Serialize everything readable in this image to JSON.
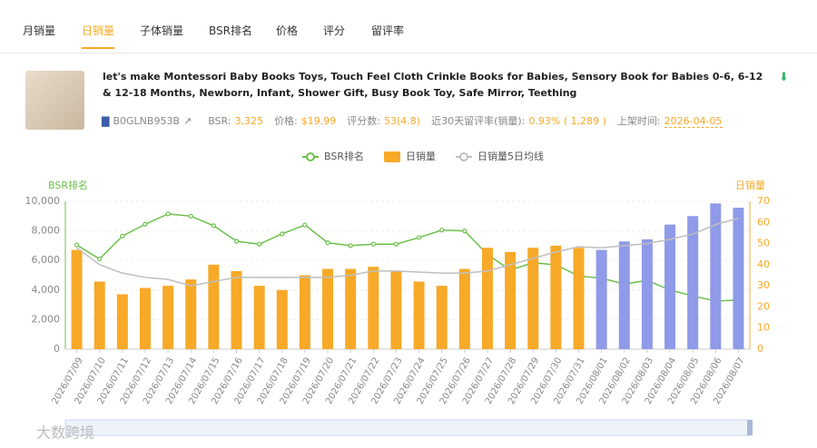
{
  "tabs": [
    "月销量",
    "日销量",
    "子体销量",
    "BSR排名",
    "价格",
    "评分",
    "留评率"
  ],
  "active_tab": 1,
  "product": {
    "title": "let's make Montessori Baby Books Toys, Touch Feel Cloth Crinkle Books for Babies, Sensory Book for Babies 0-6, 6-12 & 12-18 Months, Newborn, Infant, Shower Gift, Busy Book Toy, Safe Mirror, Teething",
    "asin": "B0GLNB953B",
    "stats": [
      {
        "label": "BSR:",
        "value": "3,325"
      },
      {
        "label": "价格:",
        "value": "$19.99"
      },
      {
        "label": "评分数:",
        "value": "53(4.8)"
      },
      {
        "label": "近30天留评率(销量):",
        "value": "0.93% ( 1,289 )"
      },
      {
        "label": "上架时间:",
        "value": "2026-04-05"
      }
    ]
  },
  "watermark": "大数跨境",
  "chart_data": {
    "type": "combo",
    "y_label": "BSR排名",
    "y2_label": "日销量",
    "categories": [
      "2026/07/09",
      "2026/07/10",
      "2026/07/11",
      "2026/07/12",
      "2026/07/13",
      "2026/07/14",
      "2026/07/15",
      "2026/07/16",
      "2026/07/17",
      "2026/07/18",
      "2026/07/19",
      "2026/07/20",
      "2026/07/21",
      "2026/07/22",
      "2026/07/23",
      "2026/07/24",
      "2026/07/25",
      "2026/07/26",
      "2026/07/27",
      "2026/07/28",
      "2026/07/29",
      "2026/07/30",
      "2026/07/31",
      "2026/08/01",
      "2026/08/02",
      "2026/08/03",
      "2026/08/04",
      "2026/08/05",
      "2026/08/06",
      "2026/08/07"
    ],
    "series": [
      {
        "name": "BSR排名",
        "type": "line",
        "color": "#6cc04a",
        "values": [
          7050,
          6100,
          7650,
          8450,
          9150,
          9000,
          8350,
          7300,
          7100,
          7800,
          8400,
          7200,
          7000,
          7100,
          7100,
          7550,
          8050,
          8000,
          6400,
          5350,
          5850,
          5700,
          4950,
          4800,
          4400,
          4650,
          4000,
          3600,
          3250,
          3325
        ]
      },
      {
        "name": "日销量",
        "type": "bar",
        "axis": "y2",
        "color": "#f7a928",
        "colors": [
          "#f7a928",
          "#f7a928",
          "#f7a928",
          "#f7a928",
          "#f7a928",
          "#f7a928",
          "#f7a928",
          "#f7a928",
          "#f7a928",
          "#f7a928",
          "#f7a928",
          "#f7a928",
          "#f7a928",
          "#f7a928",
          "#f7a928",
          "#f7a928",
          "#f7a928",
          "#f7a928",
          "#f7a928",
          "#f7a928",
          "#f7a928",
          "#f7a928",
          "#f7a928",
          "#8f9ae8",
          "#8f9ae8",
          "#8f9ae8",
          "#8f9ae8",
          "#8f9ae8",
          "#8f9ae8",
          "#8f9ae8"
        ],
        "values": [
          47,
          32,
          26,
          29,
          30,
          33,
          40,
          37,
          30,
          28,
          35,
          38,
          38,
          39,
          37,
          32,
          30,
          38,
          48,
          46,
          48,
          49,
          48,
          47,
          51,
          52,
          59,
          63,
          69,
          67
        ]
      },
      {
        "name": "日销量5日均线",
        "type": "line",
        "axis": "y2",
        "color": "#bfbfbf",
        "values": [
          48,
          40,
          36,
          34,
          33,
          30,
          32,
          34,
          34,
          34,
          34,
          34,
          35,
          37,
          37,
          36.5,
          36,
          36,
          37,
          40,
          43,
          46,
          48.5,
          48,
          49,
          50,
          52,
          54.5,
          59,
          62
        ]
      }
    ],
    "ylim": [
      0,
      10000
    ],
    "yticks": [
      0,
      {
        "value": 2000,
        "label": "2,000"
      },
      {
        "value": 4000,
        "label": "4,000"
      },
      {
        "value": 6000,
        "label": "6,000"
      },
      {
        "value": 8000,
        "label": "8,000"
      },
      {
        "value": 10000,
        "label": "10,000"
      }
    ],
    "y2lim": [
      0,
      70
    ],
    "y2ticks": [
      0,
      10,
      20,
      30,
      40,
      50,
      60,
      70
    ],
    "grid": true
  }
}
